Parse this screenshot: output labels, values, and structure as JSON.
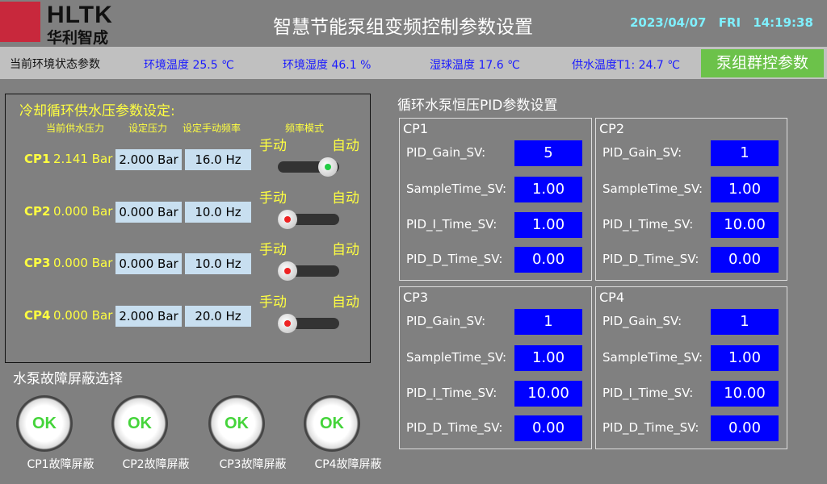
{
  "header": {
    "brand": "HLTK",
    "brand_cn": "华利智成",
    "title": "智慧节能泵组变频控制参数设置",
    "date": "2023/04/07",
    "weekday": "FRI",
    "time": "14:19:38"
  },
  "status": {
    "label": "当前环境状态参数",
    "env_temp": "环境温度 25.5 ℃",
    "env_humidity": "环境湿度 46.1 %",
    "wet_bulb": "湿球温度 17.6 ℃",
    "supply_temp": "供水温度T1: 24.7 ℃",
    "group_button": "泵组群控参数"
  },
  "pressure": {
    "title": "冷却循环供水压参数设定:",
    "headers": [
      "当前供水压力",
      "设定压力",
      "设定手动频率",
      "频率模式"
    ],
    "manual": "手动",
    "auto": "自动",
    "pumps": [
      {
        "name": "CP1",
        "current": "2.141 Bar",
        "setpoint": "2.000 Bar",
        "freq": "16.0 Hz",
        "mode": "auto"
      },
      {
        "name": "CP2",
        "current": "0.000 Bar",
        "setpoint": "0.000 Bar",
        "freq": "10.0 Hz",
        "mode": "manual"
      },
      {
        "name": "CP3",
        "current": "0.000 Bar",
        "setpoint": "0.000 Bar",
        "freq": "10.0 Hz",
        "mode": "manual"
      },
      {
        "name": "CP4",
        "current": "0.000 Bar",
        "setpoint": "2.000 Bar",
        "freq": "20.0 Hz",
        "mode": "manual"
      }
    ]
  },
  "fault": {
    "title": "水泵故障屏蔽选择",
    "ok": "OK",
    "items": [
      "CP1故障屏蔽",
      "CP2故障屏蔽",
      "CP3故障屏蔽",
      "CP4故障屏蔽"
    ]
  },
  "pid": {
    "title": "循环水泵恒压PID参数设置",
    "labels": [
      "PID_Gain_SV:",
      "SampleTime_SV:",
      "PID_I_Time_SV:",
      "PID_D_Time_SV:"
    ],
    "groups": [
      {
        "name": "CP1",
        "values": [
          "5",
          "1.00",
          "1.00",
          "0.00"
        ]
      },
      {
        "name": "CP2",
        "values": [
          "1",
          "1.00",
          "10.00",
          "0.00"
        ]
      },
      {
        "name": "CP3",
        "values": [
          "1",
          "1.00",
          "10.00",
          "0.00"
        ]
      },
      {
        "name": "CP4",
        "values": [
          "1",
          "1.00",
          "10.00",
          "0.00"
        ]
      }
    ]
  },
  "colors": {
    "background": "#808080",
    "statusbar": "#c0c0c0",
    "accent_green": "#6cc24a",
    "value_blue": "#0000ff",
    "label_yellow": "#ffff40",
    "led_auto": "#22cc44",
    "led_manual": "#ee2222"
  }
}
